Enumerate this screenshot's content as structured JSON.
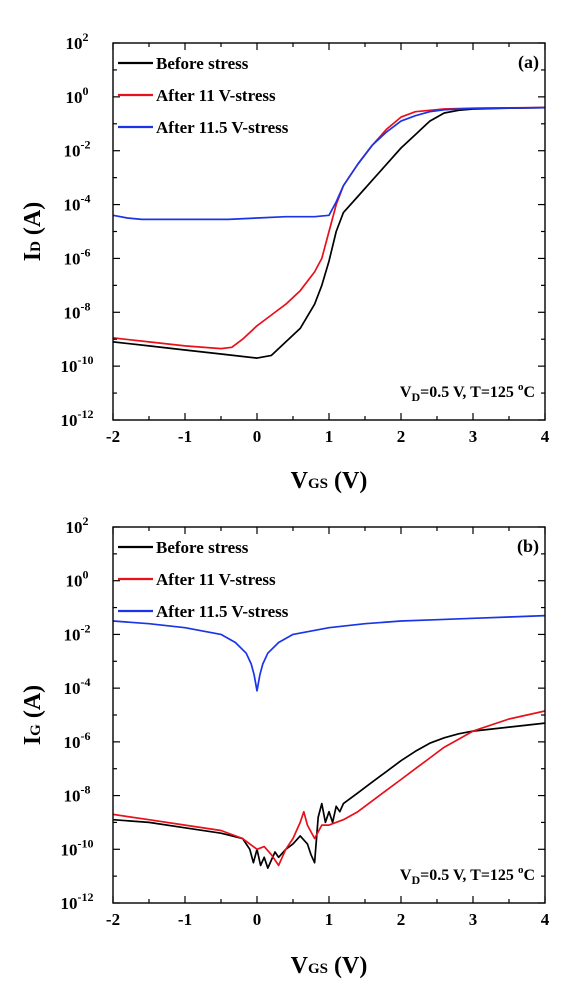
{
  "chart_data": [
    {
      "type": "line",
      "panel_label": "(a)",
      "ylabel": "I",
      "ylabel_sub": "D",
      "ylabel_tail": " (A)",
      "xlabel": "V",
      "xlabel_sub": "GS",
      "xlabel_tail": " (V)",
      "xlim": [
        -2,
        4
      ],
      "ylim_log10": [
        -12,
        2
      ],
      "y_scale": "log",
      "x_ticks": [
        -2,
        -1,
        0,
        1,
        2,
        3,
        4
      ],
      "x_tick_labels": [
        "-2",
        "-1",
        "0",
        "1",
        "2",
        "3",
        "4"
      ],
      "y_ticks": [
        {
          "exp": 2,
          "label": "10",
          "sup": "2"
        },
        {
          "exp": 0,
          "label": "10",
          "sup": "0"
        },
        {
          "exp": -2,
          "label": "10",
          "sup": "-2"
        },
        {
          "exp": -4,
          "label": "10",
          "sup": "-4"
        },
        {
          "exp": -6,
          "label": "10",
          "sup": "-6"
        },
        {
          "exp": -8,
          "label": "10",
          "sup": "-8"
        },
        {
          "exp": -10,
          "label": "10",
          "sup": "-10"
        },
        {
          "exp": -12,
          "label": "10",
          "sup": "-12"
        }
      ],
      "condition": {
        "pre": "V",
        "sub": "D",
        "mid": "=0.5 V, T=125 ",
        "sup": "o",
        "post": "C"
      },
      "legend_position": "top-left",
      "grid": false,
      "series": [
        {
          "name": "Before stress",
          "color": "#000000",
          "x": [
            -2,
            -1.5,
            -1,
            -0.5,
            0,
            0.2,
            0.4,
            0.6,
            0.8,
            0.9,
            1.0,
            1.1,
            1.2,
            1.4,
            1.6,
            1.8,
            2.0,
            2.2,
            2.4,
            2.6,
            2.8,
            3.0,
            3.5,
            4.0
          ],
          "y_log10": [
            -9.1,
            -9.25,
            -9.4,
            -9.55,
            -9.7,
            -9.6,
            -9.1,
            -8.6,
            -7.7,
            -7.0,
            -6.1,
            -5.0,
            -4.3,
            -3.7,
            -3.1,
            -2.5,
            -1.9,
            -1.4,
            -0.9,
            -0.6,
            -0.5,
            -0.45,
            -0.42,
            -0.4
          ]
        },
        {
          "name": "After 11 V-stress",
          "color": "#e8101a",
          "x": [
            -2,
            -1.5,
            -1,
            -0.5,
            -0.35,
            -0.2,
            0,
            0.2,
            0.4,
            0.6,
            0.8,
            0.9,
            1.0,
            1.1,
            1.2,
            1.4,
            1.6,
            1.8,
            2.0,
            2.2,
            2.4,
            2.6,
            3.0,
            4.0
          ],
          "y_log10": [
            -8.95,
            -9.1,
            -9.25,
            -9.35,
            -9.3,
            -9.0,
            -8.5,
            -8.1,
            -7.7,
            -7.2,
            -6.5,
            -6.0,
            -5.0,
            -4.0,
            -3.3,
            -2.5,
            -1.8,
            -1.2,
            -0.75,
            -0.55,
            -0.5,
            -0.45,
            -0.42,
            -0.4
          ]
        },
        {
          "name": "After 11.5 V-stress",
          "color": "#1a34e6",
          "x": [
            -2,
            -1.8,
            -1.6,
            -1.2,
            -0.8,
            -0.4,
            0,
            0.4,
            0.8,
            1.0,
            1.1,
            1.2,
            1.4,
            1.6,
            1.8,
            2.0,
            2.2,
            2.4,
            2.6,
            3.0,
            4.0
          ],
          "y_log10": [
            -4.4,
            -4.5,
            -4.55,
            -4.55,
            -4.55,
            -4.55,
            -4.5,
            -4.45,
            -4.45,
            -4.4,
            -3.9,
            -3.3,
            -2.5,
            -1.8,
            -1.3,
            -0.9,
            -0.7,
            -0.55,
            -0.48,
            -0.43,
            -0.4
          ]
        }
      ]
    },
    {
      "type": "line",
      "panel_label": "(b)",
      "ylabel": "I",
      "ylabel_sub": "G",
      "ylabel_tail": " (A)",
      "xlabel": "V",
      "xlabel_sub": "GS",
      "xlabel_tail": " (V)",
      "xlim": [
        -2,
        4
      ],
      "ylim_log10": [
        -12,
        2
      ],
      "y_scale": "log",
      "x_ticks": [
        -2,
        -1,
        0,
        1,
        2,
        3,
        4
      ],
      "x_tick_labels": [
        "-2",
        "-1",
        "0",
        "1",
        "2",
        "3",
        "4"
      ],
      "y_ticks": [
        {
          "exp": 2,
          "label": "10",
          "sup": "2"
        },
        {
          "exp": 0,
          "label": "10",
          "sup": "0"
        },
        {
          "exp": -2,
          "label": "10",
          "sup": "-2"
        },
        {
          "exp": -4,
          "label": "10",
          "sup": "-4"
        },
        {
          "exp": -6,
          "label": "10",
          "sup": "-6"
        },
        {
          "exp": -8,
          "label": "10",
          "sup": "-8"
        },
        {
          "exp": -10,
          "label": "10",
          "sup": "-10"
        },
        {
          "exp": -12,
          "label": "10",
          "sup": "-12"
        }
      ],
      "condition": {
        "pre": "V",
        "sub": "D",
        "mid": "=0.5 V, T=125 ",
        "sup": "o",
        "post": "C"
      },
      "legend_position": "top-left",
      "grid": false,
      "series": [
        {
          "name": "Before stress",
          "color": "#000000",
          "x": [
            -2,
            -1.5,
            -1,
            -0.5,
            -0.2,
            -0.1,
            -0.05,
            0,
            0.05,
            0.1,
            0.15,
            0.2,
            0.25,
            0.3,
            0.4,
            0.5,
            0.6,
            0.7,
            0.75,
            0.8,
            0.85,
            0.9,
            0.95,
            1.0,
            1.05,
            1.1,
            1.15,
            1.2,
            1.4,
            1.6,
            1.8,
            2.0,
            2.2,
            2.4,
            2.6,
            2.8,
            3.0,
            3.5,
            4.0
          ],
          "y_log10": [
            -8.9,
            -9.0,
            -9.2,
            -9.4,
            -9.6,
            -10.0,
            -10.5,
            -10.0,
            -10.6,
            -10.3,
            -10.7,
            -10.4,
            -10.1,
            -10.3,
            -10.0,
            -9.8,
            -9.5,
            -9.8,
            -10.2,
            -10.5,
            -8.8,
            -8.3,
            -9.0,
            -8.6,
            -9.0,
            -8.4,
            -8.6,
            -8.3,
            -7.9,
            -7.5,
            -7.1,
            -6.7,
            -6.35,
            -6.05,
            -5.85,
            -5.7,
            -5.6,
            -5.45,
            -5.3
          ]
        },
        {
          "name": "After 11 V-stress",
          "color": "#e8101a",
          "x": [
            -2,
            -1.5,
            -1,
            -0.5,
            -0.2,
            -0.1,
            0,
            0.1,
            0.2,
            0.3,
            0.35,
            0.4,
            0.5,
            0.6,
            0.65,
            0.7,
            0.8,
            0.9,
            1.0,
            1.2,
            1.4,
            1.6,
            1.8,
            2.0,
            2.2,
            2.4,
            2.6,
            2.8,
            3.0,
            3.5,
            4.0
          ],
          "y_log10": [
            -8.7,
            -8.9,
            -9.1,
            -9.3,
            -9.6,
            -9.8,
            -10.0,
            -9.9,
            -10.2,
            -10.6,
            -10.3,
            -10.0,
            -9.6,
            -9.0,
            -8.6,
            -9.1,
            -9.6,
            -9.1,
            -9.1,
            -8.9,
            -8.6,
            -8.2,
            -7.8,
            -7.4,
            -7.0,
            -6.6,
            -6.2,
            -5.9,
            -5.6,
            -5.15,
            -4.85
          ]
        },
        {
          "name": "After 11.5 V-stress",
          "color": "#1a34e6",
          "x": [
            -2,
            -1.5,
            -1,
            -0.5,
            -0.3,
            -0.15,
            -0.08,
            -0.04,
            0,
            0.04,
            0.08,
            0.15,
            0.3,
            0.5,
            1.0,
            1.5,
            2.0,
            2.5,
            3.0,
            3.5,
            4.0
          ],
          "y_log10": [
            -1.5,
            -1.6,
            -1.75,
            -2.0,
            -2.3,
            -2.7,
            -3.1,
            -3.5,
            -4.1,
            -3.5,
            -3.1,
            -2.7,
            -2.3,
            -2.0,
            -1.75,
            -1.6,
            -1.5,
            -1.45,
            -1.4,
            -1.35,
            -1.3
          ]
        }
      ]
    }
  ]
}
